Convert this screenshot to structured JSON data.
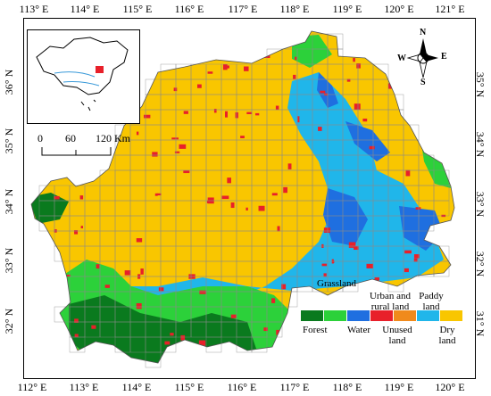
{
  "map": {
    "top_ticks": [
      "113° E",
      "114° E",
      "115° E",
      "116° E",
      "117° E",
      "118° E",
      "119° E",
      "120° E",
      "121° E"
    ],
    "bottom_ticks": [
      "112° E",
      "113° E",
      "114° E",
      "115° E",
      "116° E",
      "117° E",
      "118° E",
      "119° E",
      "120° E"
    ],
    "left_ticks": [
      "36° N",
      "35° N",
      "34° N",
      "33° N",
      "32° N"
    ],
    "right_ticks": [
      "35° N",
      "34° N",
      "33° N",
      "32° N",
      "31° N"
    ],
    "scale_labels": [
      "0",
      "60",
      "120 Km"
    ],
    "compass": {
      "n": "N",
      "s": "S",
      "e": "E",
      "w": "W"
    }
  },
  "legend": {
    "classes": [
      {
        "label": "Forest",
        "color": "#0a7a1e"
      },
      {
        "label": "Grassland",
        "color": "#2cd13a"
      },
      {
        "label": "Water",
        "color": "#1f6fe0"
      },
      {
        "label": "Urban and rural land",
        "color": "#e8202a"
      },
      {
        "label": "Unused land",
        "color": "#f08a1c"
      },
      {
        "label": "Paddy land",
        "color": "#20b6ea"
      },
      {
        "label": "Dry land",
        "color": "#f9c600"
      }
    ]
  }
}
